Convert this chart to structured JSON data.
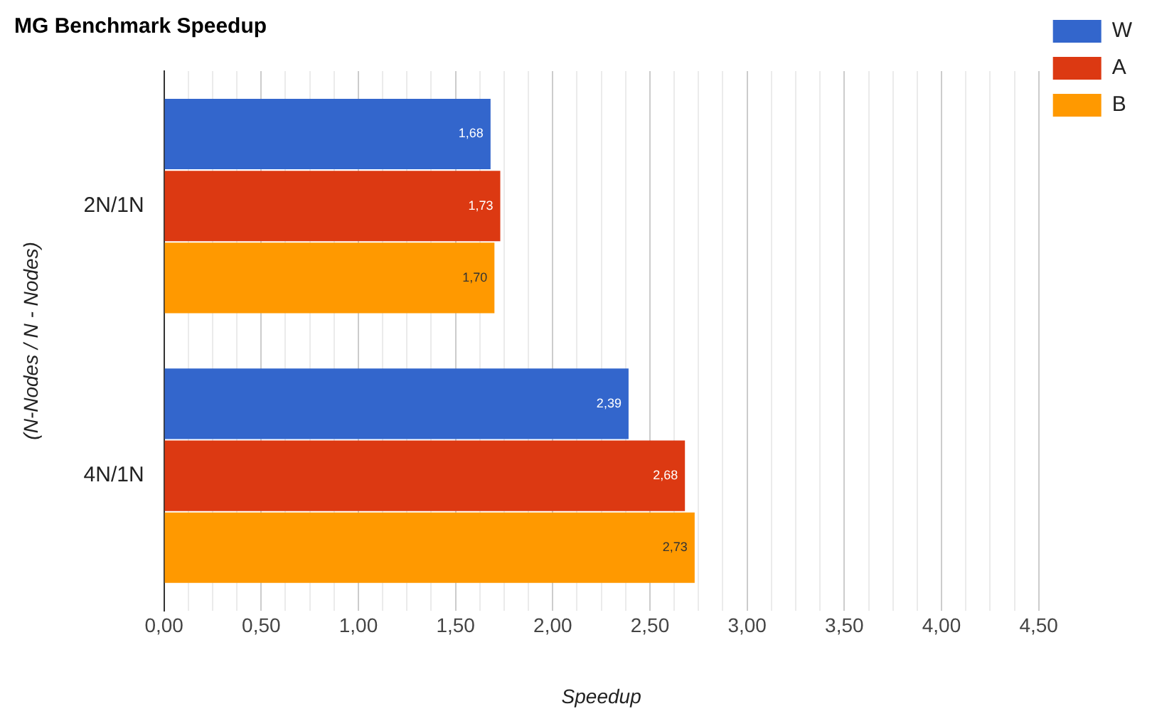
{
  "chart_data": {
    "type": "bar",
    "orientation": "horizontal",
    "title": "MG Benchmark Speedup",
    "xlabel": "Speedup",
    "ylabel": "(N-Nodes / N - Nodes)",
    "categories": [
      "2N/1N",
      "4N/1N"
    ],
    "series": [
      {
        "name": "W",
        "color": "#3366cc",
        "values": [
          1.68,
          2.39
        ],
        "value_labels": [
          "1,68",
          "2,39"
        ]
      },
      {
        "name": "A",
        "color": "#dc3912",
        "values": [
          1.73,
          2.68
        ],
        "value_labels": [
          "1,73",
          "2,68"
        ]
      },
      {
        "name": "B",
        "color": "#ff9900",
        "values": [
          1.7,
          2.73
        ],
        "value_labels": [
          "1,70",
          "2,73"
        ]
      }
    ],
    "xlim": [
      0,
      4.5
    ],
    "xticks": [
      {
        "value": 0,
        "label": "0,00"
      },
      {
        "value": 0.125,
        "label": null
      },
      {
        "value": 0.25,
        "label": null
      },
      {
        "value": 0.375,
        "label": null
      },
      {
        "value": 0.5,
        "label": "0,50"
      },
      {
        "value": 0.625,
        "label": null
      },
      {
        "value": 0.75,
        "label": null
      },
      {
        "value": 0.875,
        "label": null
      },
      {
        "value": 1,
        "label": "1,00"
      },
      {
        "value": 1.125,
        "label": null
      },
      {
        "value": 1.25,
        "label": null
      },
      {
        "value": 1.375,
        "label": null
      },
      {
        "value": 1.5,
        "label": "1,50"
      },
      {
        "value": 1.625,
        "label": null
      },
      {
        "value": 1.75,
        "label": null
      },
      {
        "value": 1.875,
        "label": null
      },
      {
        "value": 2,
        "label": "2,00"
      },
      {
        "value": 2.125,
        "label": null
      },
      {
        "value": 2.25,
        "label": null
      },
      {
        "value": 2.375,
        "label": null
      },
      {
        "value": 2.5,
        "label": "2,50"
      },
      {
        "value": 2.625,
        "label": null
      },
      {
        "value": 2.75,
        "label": null
      },
      {
        "value": 2.875,
        "label": null
      },
      {
        "value": 3,
        "label": "3,00"
      },
      {
        "value": 3.125,
        "label": null
      },
      {
        "value": 3.25,
        "label": null
      },
      {
        "value": 3.375,
        "label": null
      },
      {
        "value": 3.5,
        "label": "3,50"
      },
      {
        "value": 3.625,
        "label": null
      },
      {
        "value": 3.75,
        "label": null
      },
      {
        "value": 3.875,
        "label": null
      },
      {
        "value": 4,
        "label": "4,00"
      },
      {
        "value": 4.125,
        "label": null
      },
      {
        "value": 4.25,
        "label": null
      },
      {
        "value": 4.375,
        "label": null
      },
      {
        "value": 4.5,
        "label": "4,50"
      }
    ],
    "grid": "x",
    "legend": "top right"
  }
}
